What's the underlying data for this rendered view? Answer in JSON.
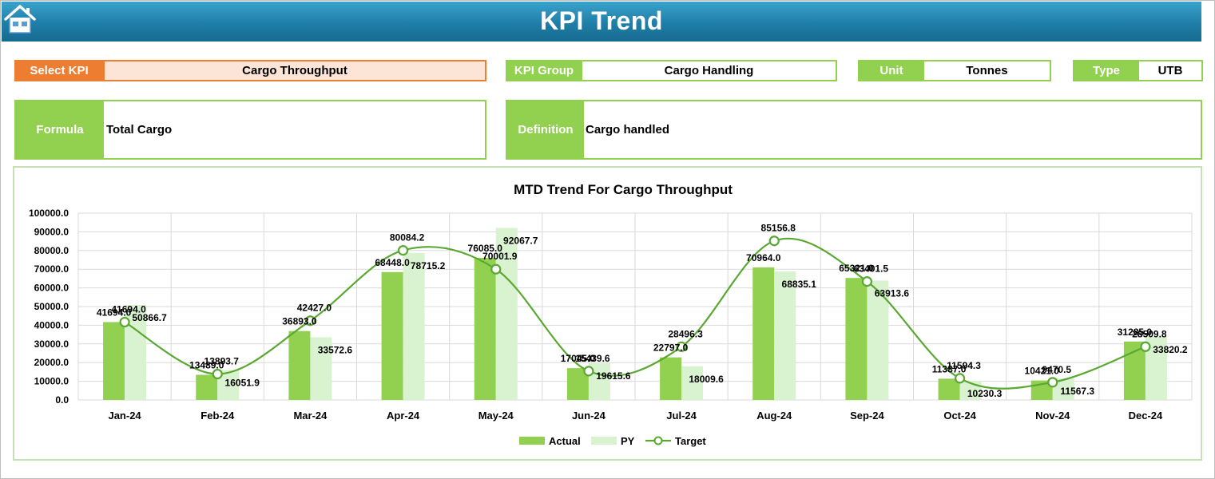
{
  "header": {
    "title": "KPI Trend"
  },
  "selectors": {
    "select_kpi_label": "Select KPI",
    "select_kpi_value": "Cargo Throughput",
    "kpi_group_label": "KPI Group",
    "kpi_group_value": "Cargo Handling",
    "unit_label": "Unit",
    "unit_value": "Tonnes",
    "type_label": "Type",
    "type_value": "UTB"
  },
  "formula": {
    "label": "Formula",
    "value": "Total Cargo"
  },
  "definition": {
    "label": "Definition",
    "value": "Cargo handled"
  },
  "colors": {
    "actual": "#92d050",
    "py": "#d9f2d0",
    "target": "#5aa832",
    "header": "#1f7ea8",
    "orange": "#ed7d31"
  },
  "chart_data": {
    "type": "bar",
    "title": "MTD Trend For Cargo Throughput",
    "categories": [
      "Jan-24",
      "Feb-24",
      "Mar-24",
      "Apr-24",
      "May-24",
      "Jun-24",
      "Jul-24",
      "Aug-24",
      "Sep-24",
      "Oct-24",
      "Nov-24",
      "Dec-24"
    ],
    "ylim": [
      0,
      100000
    ],
    "yticks": [
      "0.0",
      "10000.0",
      "20000.0",
      "30000.0",
      "40000.0",
      "50000.0",
      "60000.0",
      "70000.0",
      "80000.0",
      "90000.0",
      "100000.0"
    ],
    "grid": true,
    "legend_position": "bottom",
    "series": [
      {
        "name": "Actual",
        "kind": "bar",
        "values": [
          41694.0,
          13489.0,
          36893.0,
          68448.0,
          76085.0,
          17045.0,
          22797.0,
          70964.0,
          65321.0,
          11387.0,
          10421.0,
          31285.0
        ],
        "labels": [
          "41694.0",
          "13489.0",
          "36893.0",
          "68448.0",
          "76085.0",
          "17045.0",
          "22797.0",
          "70964.0",
          "65321.0",
          "11387.0",
          "10421.0",
          "31285.0"
        ]
      },
      {
        "name": "PY",
        "kind": "bar",
        "values": [
          50866.7,
          16051.9,
          33572.6,
          78715.2,
          92067.7,
          19615.6,
          18009.6,
          68835.1,
          63913.6,
          10230.3,
          11567.3,
          33820.2
        ],
        "labels": [
          "50866.7",
          "16051.9",
          "33572.6",
          "78715.2",
          "92067.7",
          "19615.6",
          "18009.6",
          "68835.1",
          "63913.6",
          "10230.3",
          "11567.3",
          "33820.2"
        ]
      },
      {
        "name": "Target",
        "kind": "line",
        "values": [
          41694.0,
          13893.7,
          42427.0,
          80084.2,
          70001.9,
          15439.6,
          28496.3,
          85156.8,
          63401.5,
          11594.3,
          9470.5,
          28509.8
        ],
        "labels": [
          "41694.0",
          "13893.7",
          "42427.0",
          "80084.2",
          "70001.9",
          "15439.6",
          "28496.3",
          "85156.8",
          "63401.5",
          "11594.3",
          "9470.5",
          "28509.8"
        ]
      }
    ]
  }
}
